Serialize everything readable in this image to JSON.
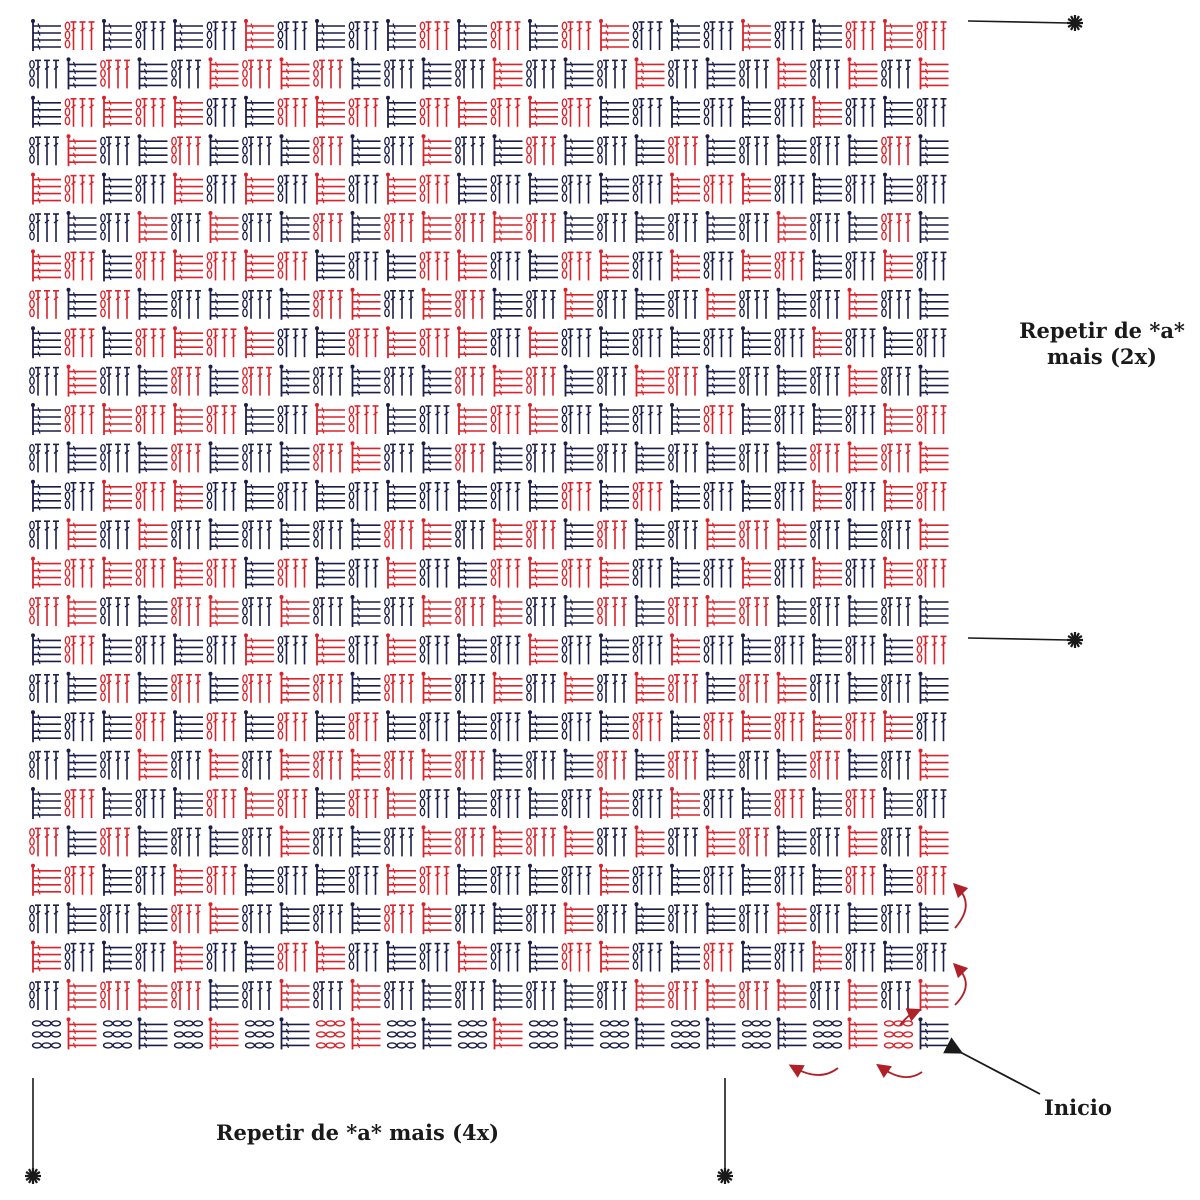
{
  "colors": {
    "navy": "#1b1d4a",
    "red": "#d9232b",
    "annotation": "#1a1a1a",
    "hint_arrow": "#b02028"
  },
  "chart": {
    "columns": 26,
    "rows": 27,
    "pattern": "basketweave-post-stitches",
    "block_types": [
      "trebles",
      "horizontal-posts",
      "chain-loops"
    ]
  },
  "labels": {
    "repeat_side_line1": "Repetir de *a*",
    "repeat_side_line2": "mais (2x)",
    "repeat_bottom": "Repetir de *a* mais (4x)",
    "start": "Inicio"
  },
  "markers": {
    "asterisk_symbol": "asterisk-marker-icon"
  }
}
